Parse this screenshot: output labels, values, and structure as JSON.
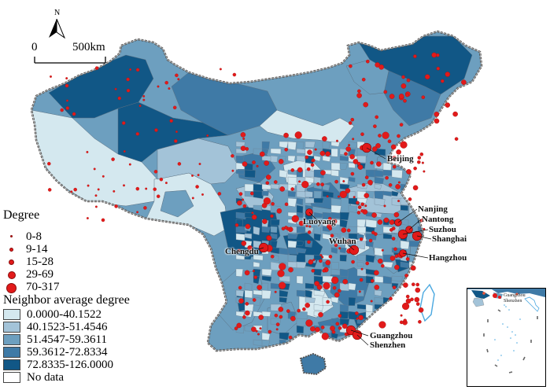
{
  "north_arrow": {
    "label": "N"
  },
  "scale_bar": {
    "start_label": "0",
    "end_label": "500km"
  },
  "legend": {
    "degree_title": "Degree",
    "degree_classes": [
      {
        "label": "0-8"
      },
      {
        "label": "9-14"
      },
      {
        "label": "15-28"
      },
      {
        "label": "29-69"
      },
      {
        "label": "70-317"
      }
    ],
    "neighbor_title": "Neighbor average degree",
    "neighbor_classes": [
      {
        "label": "0.0000-40.1522",
        "color": "#d4e8ef"
      },
      {
        "label": "40.1523-51.4546",
        "color": "#a3c3d8"
      },
      {
        "label": "51.4547-59.3611",
        "color": "#6d9fbf"
      },
      {
        "label": "59.3612-72.8334",
        "color": "#3f7aa6"
      },
      {
        "label": "72.8335-126.0000",
        "color": "#115786"
      }
    ],
    "no_data_label": "No data",
    "degree_dot_color": "#e21a1a"
  },
  "cities": [
    {
      "name": "Beijing"
    },
    {
      "name": "Nanjing"
    },
    {
      "name": "Nantong"
    },
    {
      "name": "Suzhou"
    },
    {
      "name": "Shanghai"
    },
    {
      "name": "Luoyang"
    },
    {
      "name": "Wuhan"
    },
    {
      "name": "Chengdu"
    },
    {
      "name": "Hangzhou"
    },
    {
      "name": "Guangzhou"
    },
    {
      "name": "Shenzhen"
    }
  ],
  "inset": {
    "labels": [
      "Guangzhou",
      "Shenzhen"
    ]
  }
}
